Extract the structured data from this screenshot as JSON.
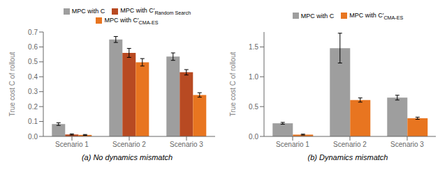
{
  "chart_data": [
    {
      "type": "bar",
      "title": "(a)  No dynamics mismatch",
      "ylabel": "True cost C of rollout",
      "categories": [
        "Scenario 1",
        "Scenario 2",
        "Scenario 3"
      ],
      "series": [
        {
          "name": "MPC with C",
          "color": "#9E9E9E",
          "values": [
            0.083,
            0.65,
            0.535
          ],
          "errors": [
            0.009,
            0.02,
            0.025
          ]
        },
        {
          "name": "MPC with C′Random Search",
          "color": "#B84A22",
          "values": [
            0.013,
            0.56,
            0.43
          ],
          "errors": [
            0.004,
            0.03,
            0.018
          ]
        },
        {
          "name": "MPC with C′CMA-ES",
          "color": "#E87520",
          "values": [
            0.01,
            0.497,
            0.278
          ],
          "errors": [
            0.003,
            0.025,
            0.015
          ]
        }
      ],
      "ylim": [
        0,
        0.7
      ],
      "yticks": [
        {
          "value": 0,
          "label": "0.0"
        },
        0.1,
        0.2,
        0.3,
        0.4,
        0.5,
        0.6,
        0.7
      ],
      "grid": false,
      "legend": "top"
    },
    {
      "type": "bar",
      "title": "(b)  Dynamics mismatch",
      "ylabel": "True cost C of rollout",
      "categories": [
        "Scenario 1",
        "Scenario 2",
        "Scenario 3"
      ],
      "series": [
        {
          "name": "MPC with C",
          "color": "#9E9E9E",
          "values": [
            0.22,
            1.48,
            0.65
          ],
          "errors": [
            0.015,
            0.25,
            0.04
          ]
        },
        {
          "name": "MPC with C′CMA-ES",
          "color": "#E87520",
          "values": [
            0.03,
            0.61,
            0.305
          ],
          "errors": [
            0.008,
            0.035,
            0.018
          ]
        }
      ],
      "ylim": [
        0,
        1.75
      ],
      "yticks": [
        {
          "value": 0,
          "label": "0.0"
        },
        0.5,
        {
          "value": 1,
          "label": "1.0"
        },
        1.5
      ],
      "grid": false,
      "legend": "top"
    }
  ]
}
